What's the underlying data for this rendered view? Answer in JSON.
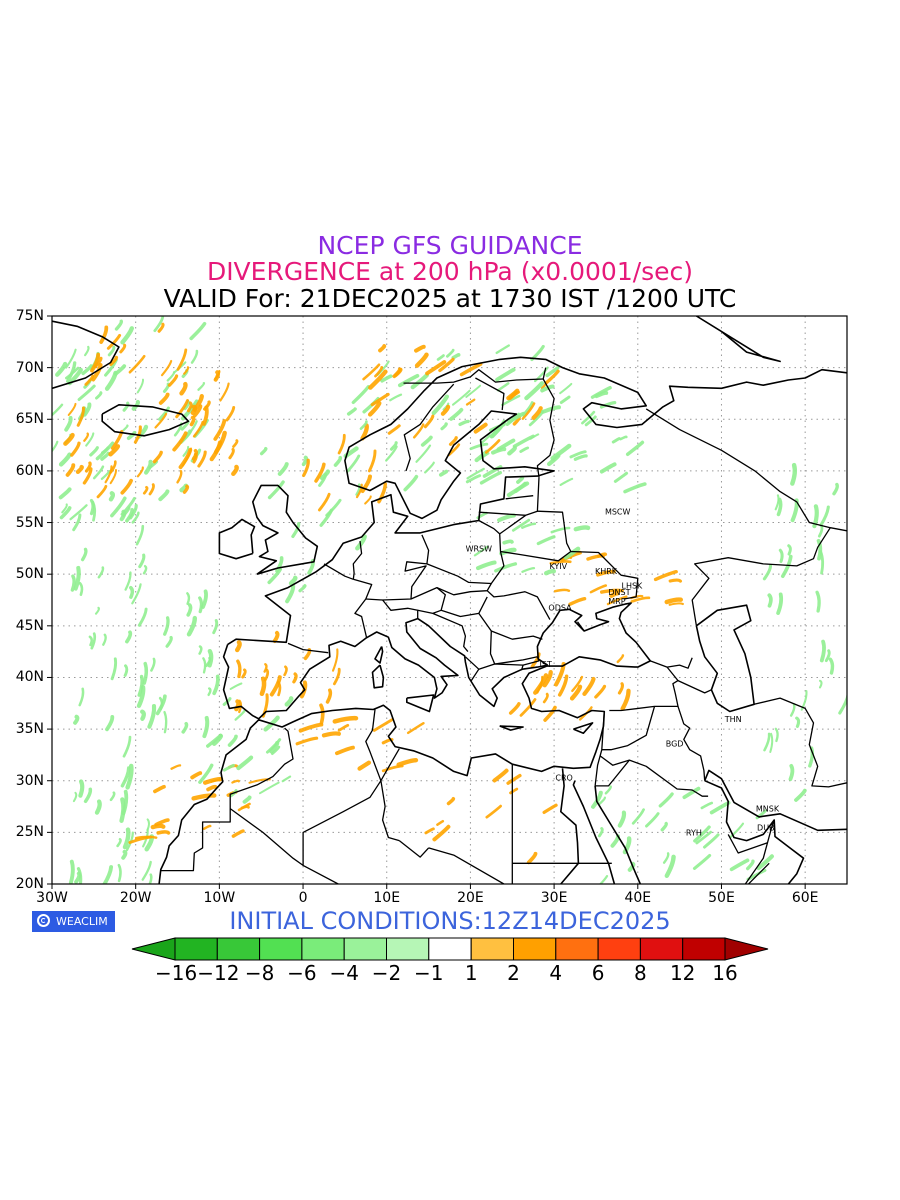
{
  "title": {
    "line1": "NCEP GFS GUIDANCE",
    "line2": "DIVERGENCE at 200 hPa (x0.0001/sec)",
    "line3": "VALID For: 21DEC2025 at 1730 IST /1200 UTC"
  },
  "map": {
    "projection": "lat-lon",
    "lon_range": [
      -30,
      65
    ],
    "lat_range": [
      20,
      75
    ],
    "grid": "dotted",
    "lat_labels": [
      "75N",
      "70N",
      "65N",
      "60N",
      "55N",
      "50N",
      "45N",
      "40N",
      "35N",
      "30N",
      "25N",
      "20N"
    ],
    "lon_labels": [
      "30W",
      "20W",
      "10W",
      "0",
      "10E",
      "20E",
      "30E",
      "40E",
      "50E",
      "60E"
    ],
    "colors": {
      "convergence": "#90ee90",
      "divergence": "#ffa500",
      "coast": "#000000"
    }
  },
  "cities": [
    {
      "name": "MSCW",
      "lon": 37.6,
      "lat": 55.8
    },
    {
      "name": "WRSW",
      "lon": 21.0,
      "lat": 52.2
    },
    {
      "name": "KYIV",
      "lon": 30.5,
      "lat": 50.5
    },
    {
      "name": "KHRK",
      "lon": 36.2,
      "lat": 50.0
    },
    {
      "name": "LHSK",
      "lon": 39.3,
      "lat": 48.6
    },
    {
      "name": "DNST",
      "lon": 37.8,
      "lat": 48.0
    },
    {
      "name": "MRP",
      "lon": 37.5,
      "lat": 47.1
    },
    {
      "name": "ODSA",
      "lon": 30.7,
      "lat": 46.5
    },
    {
      "name": "IST",
      "lon": 29.0,
      "lat": 41.0
    },
    {
      "name": "THN",
      "lon": 51.4,
      "lat": 35.7
    },
    {
      "name": "BGD",
      "lon": 44.4,
      "lat": 33.3
    },
    {
      "name": "CRO",
      "lon": 31.2,
      "lat": 30.0
    },
    {
      "name": "MNSK",
      "lon": 55.5,
      "lat": 27.0
    },
    {
      "name": "DUB",
      "lon": 55.3,
      "lat": 25.2
    },
    {
      "name": "RYH",
      "lon": 46.7,
      "lat": 24.7
    }
  ],
  "logo": {
    "text": "WEACLIM"
  },
  "initial_conditions": "INITIAL CONDITIONS:12Z14DEC2025",
  "colorbar": {
    "labels": [
      "−16",
      "−12",
      "−8",
      "−6",
      "−4",
      "−2",
      "−1",
      "1",
      "2",
      "4",
      "6",
      "8",
      "12",
      "16"
    ],
    "colors": [
      "#1aa51a",
      "#22b422",
      "#38c838",
      "#52e052",
      "#7aec7a",
      "#9af29a",
      "#b6f6b6",
      "#ffffff",
      "#ffc040",
      "#ffa000",
      "#ff7010",
      "#ff4010",
      "#e01010",
      "#c00000",
      "#a00000",
      "#a00000"
    ]
  }
}
